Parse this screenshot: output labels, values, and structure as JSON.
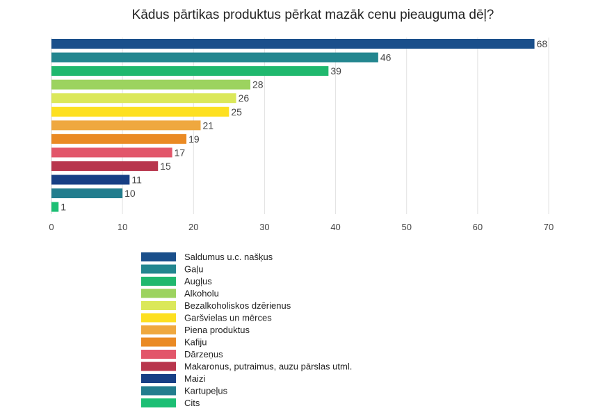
{
  "chart_data": {
    "type": "bar",
    "orientation": "horizontal",
    "title": "Kādus pārtikas produktus pērkat mazāk cenu pieauguma dēļ?",
    "xlabel": "",
    "ylabel": "",
    "xlim": [
      0,
      70
    ],
    "x_ticks": [
      0,
      10,
      20,
      30,
      40,
      50,
      60,
      70
    ],
    "grid": true,
    "legend_position": "bottom",
    "series": [
      {
        "name": "Saldumus u.c. našķus",
        "value": 68,
        "color": "#1a4f8b"
      },
      {
        "name": "Gaļu",
        "value": 46,
        "color": "#23868f"
      },
      {
        "name": "Augļus",
        "value": 39,
        "color": "#20b86e"
      },
      {
        "name": "Alkoholu",
        "value": 28,
        "color": "#9cd35f"
      },
      {
        "name": "Bezalkoholiskos dzērienus",
        "value": 26,
        "color": "#dbe85a"
      },
      {
        "name": "Garšvielas un mērces",
        "value": 25,
        "color": "#fde021"
      },
      {
        "name": "Piena produktus",
        "value": 21,
        "color": "#efa83f"
      },
      {
        "name": "Kafiju",
        "value": 19,
        "color": "#ea8a24"
      },
      {
        "name": "Dārzeņus",
        "value": 17,
        "color": "#e2566a"
      },
      {
        "name": "Makaronus, putraimus, auzu pārslas utml.",
        "value": 15,
        "color": "#b8364d"
      },
      {
        "name": "Maizi",
        "value": 11,
        "color": "#173f85"
      },
      {
        "name": "Kartupeļus",
        "value": 10,
        "color": "#227d8e"
      },
      {
        "name": "Cits",
        "value": 1,
        "color": "#1cbf74"
      }
    ]
  }
}
